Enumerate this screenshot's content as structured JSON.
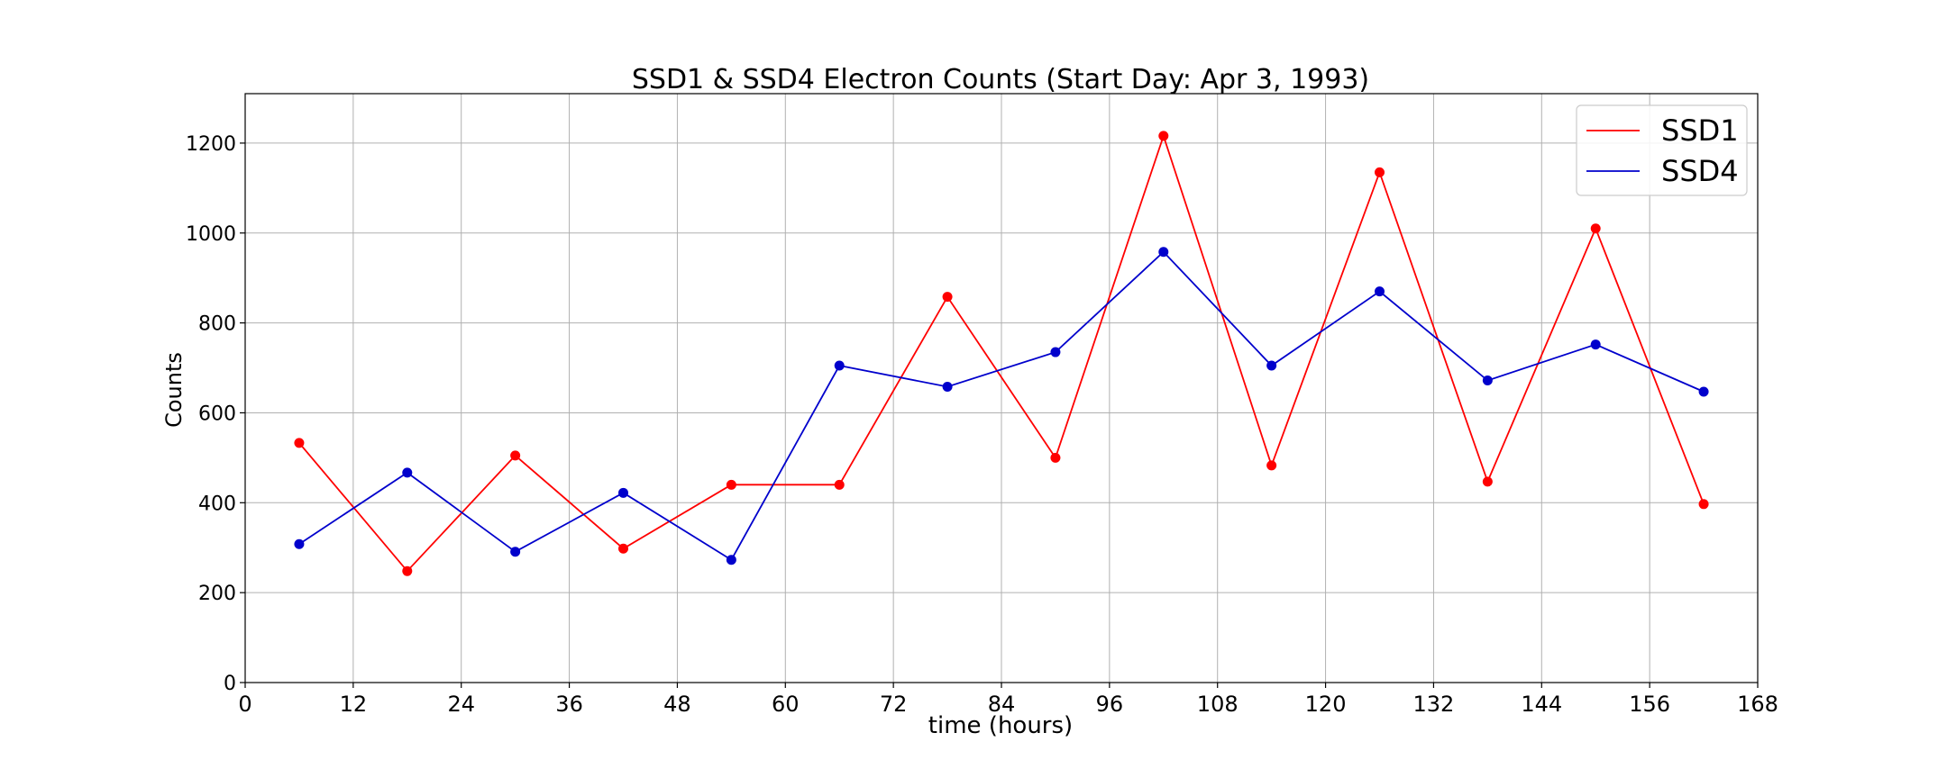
{
  "chart_data": {
    "type": "line",
    "title": "SSD1 & SSD4 Electron Counts (Start Day: Apr 3, 1993)",
    "xlabel": "time (hours)",
    "ylabel": "Counts",
    "xlim": [
      0,
      168
    ],
    "ylim": [
      0,
      1310
    ],
    "xticks": [
      0,
      12,
      24,
      36,
      48,
      60,
      72,
      84,
      96,
      108,
      120,
      132,
      144,
      156,
      168
    ],
    "yticks": [
      0,
      200,
      400,
      600,
      800,
      1000,
      1200
    ],
    "grid": true,
    "legend_position": "top-right",
    "x": [
      6,
      18,
      30,
      42,
      54,
      66,
      78,
      90,
      102,
      114,
      126,
      138,
      150,
      162
    ],
    "series": [
      {
        "name": "SSD1",
        "color": "#ff0000",
        "values": [
          533,
          248,
          505,
          298,
          440,
          440,
          858,
          500,
          1216,
          483,
          1135,
          447,
          1010,
          397
        ]
      },
      {
        "name": "SSD4",
        "color": "#0000cc",
        "values": [
          308,
          467,
          291,
          422,
          273,
          705,
          658,
          735,
          958,
          705,
          870,
          672,
          752,
          647
        ]
      }
    ]
  }
}
